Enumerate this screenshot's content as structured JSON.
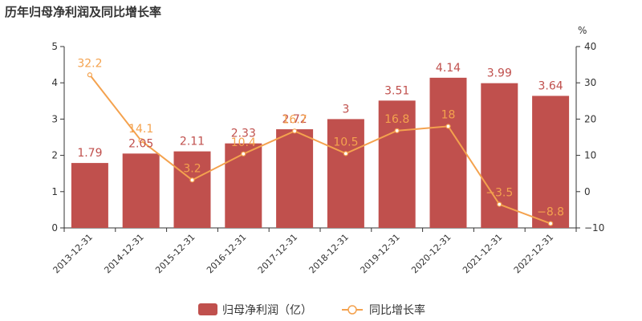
{
  "chart_data": {
    "type": "bar",
    "title": "历年归母净利润及同比增长率",
    "categories": [
      "2013-12-31",
      "2014-12-31",
      "2015-12-31",
      "2016-12-31",
      "2017-12-31",
      "2018-12-31",
      "2019-12-31",
      "2020-12-31",
      "2021-12-31",
      "2022-12-31"
    ],
    "series": [
      {
        "name": "归母净利润（亿）",
        "type": "bar",
        "axis": "left",
        "color": "#c0504d",
        "values": [
          1.79,
          2.05,
          2.11,
          2.33,
          2.72,
          3,
          3.51,
          4.14,
          3.99,
          3.64
        ],
        "labels": [
          "1.79",
          "2.05",
          "2.11",
          "2.33",
          "2.72",
          "3",
          "3.51",
          "4.14",
          "3.99",
          "3.64"
        ]
      },
      {
        "name": "同比增长率",
        "type": "line",
        "axis": "right",
        "color": "#f4a24e",
        "values": [
          32.2,
          14.1,
          3.2,
          10.4,
          16.7,
          10.5,
          16.8,
          18,
          -3.5,
          -8.8
        ],
        "labels": [
          "32.2",
          "14.1",
          "3.2",
          "10.4",
          "16.7",
          "10.5",
          "16.8",
          "18",
          "−3.5",
          "−8.8"
        ]
      }
    ],
    "y_left": {
      "min": 0,
      "max": 5,
      "ticks": [
        "0",
        "1",
        "2",
        "3",
        "4",
        "5"
      ]
    },
    "y_right": {
      "min": -10,
      "max": 40,
      "unit": "%",
      "ticks": [
        "−10",
        "0",
        "10",
        "20",
        "30",
        "40"
      ]
    },
    "grid": false,
    "legend_position": "bottom"
  }
}
